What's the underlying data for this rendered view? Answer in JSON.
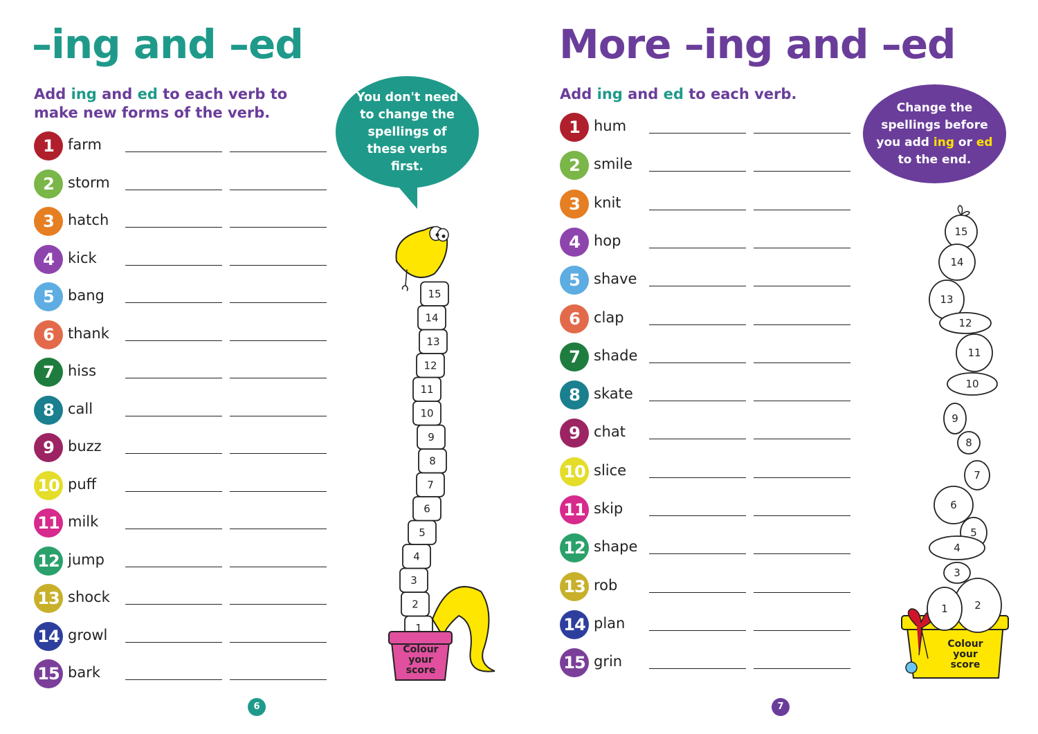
{
  "left_page": {
    "title": "–ing and –ed",
    "instruction": {
      "p1": "Add ",
      "kw1": "ing",
      "p2": " and ",
      "kw2": "ed",
      "p3": " to each verb to make new forms of the verb."
    },
    "tip": "You don't need to change the spellings of these verbs first.",
    "verbs": [
      {
        "n": "1",
        "word": "farm",
        "color": "#b01f2c"
      },
      {
        "n": "2",
        "word": "storm",
        "color": "#7ab648"
      },
      {
        "n": "3",
        "word": "hatch",
        "color": "#e67e22"
      },
      {
        "n": "4",
        "word": "kick",
        "color": "#8e44ad"
      },
      {
        "n": "5",
        "word": "bang",
        "color": "#5dade2"
      },
      {
        "n": "6",
        "word": "thank",
        "color": "#e26a4a"
      },
      {
        "n": "7",
        "word": "hiss",
        "color": "#1e7d3e"
      },
      {
        "n": "8",
        "word": "call",
        "color": "#1a7f8e"
      },
      {
        "n": "9",
        "word": "buzz",
        "color": "#9c2462"
      },
      {
        "n": "10",
        "word": "puff",
        "color": "#e4dd2a"
      },
      {
        "n": "11",
        "word": "milk",
        "color": "#d62a8c"
      },
      {
        "n": "12",
        "word": "jump",
        "color": "#2aa06b"
      },
      {
        "n": "13",
        "word": "shock",
        "color": "#c8b02a"
      },
      {
        "n": "14",
        "word": "growl",
        "color": "#2d3f9e"
      },
      {
        "n": "15",
        "word": "bark",
        "color": "#7b3f9a"
      }
    ],
    "score_text": "Colour your score",
    "score_values": [
      "1",
      "2",
      "3",
      "4",
      "5",
      "6",
      "7",
      "8",
      "9",
      "10",
      "11",
      "12",
      "13",
      "14",
      "15"
    ],
    "page_number": "6"
  },
  "right_page": {
    "title": "More –ing and –ed",
    "instruction": {
      "p1": "Add ",
      "kw1": "ing",
      "p2": " and ",
      "kw2": "ed",
      "p3": " to each verb."
    },
    "tip": {
      "p1": "Change the spellings before you add ",
      "kw1": "ing",
      "p2": " or ",
      "kw2": "ed",
      "p3": " to the end."
    },
    "verbs": [
      {
        "n": "1",
        "word": "hum",
        "color": "#b01f2c"
      },
      {
        "n": "2",
        "word": "smile",
        "color": "#7ab648"
      },
      {
        "n": "3",
        "word": "knit",
        "color": "#e67e22"
      },
      {
        "n": "4",
        "word": "hop",
        "color": "#8e44ad"
      },
      {
        "n": "5",
        "word": "shave",
        "color": "#5dade2"
      },
      {
        "n": "6",
        "word": "clap",
        "color": "#e26a4a"
      },
      {
        "n": "7",
        "word": "shade",
        "color": "#1e7d3e"
      },
      {
        "n": "8",
        "word": "skate",
        "color": "#1a7f8e"
      },
      {
        "n": "9",
        "word": "chat",
        "color": "#9c2462"
      },
      {
        "n": "10",
        "word": "slice",
        "color": "#e4dd2a"
      },
      {
        "n": "11",
        "word": "skip",
        "color": "#d62a8c"
      },
      {
        "n": "12",
        "word": "shape",
        "color": "#2aa06b"
      },
      {
        "n": "13",
        "word": "rob",
        "color": "#c8b02a"
      },
      {
        "n": "14",
        "word": "plan",
        "color": "#2d3f9e"
      },
      {
        "n": "15",
        "word": "grin",
        "color": "#7b3f9a"
      }
    ],
    "score_text": "Colour your score",
    "score_values": [
      "1",
      "2",
      "3",
      "4",
      "5",
      "6",
      "7",
      "8",
      "9",
      "10",
      "11",
      "12",
      "13",
      "14",
      "15"
    ],
    "page_number": "7"
  }
}
